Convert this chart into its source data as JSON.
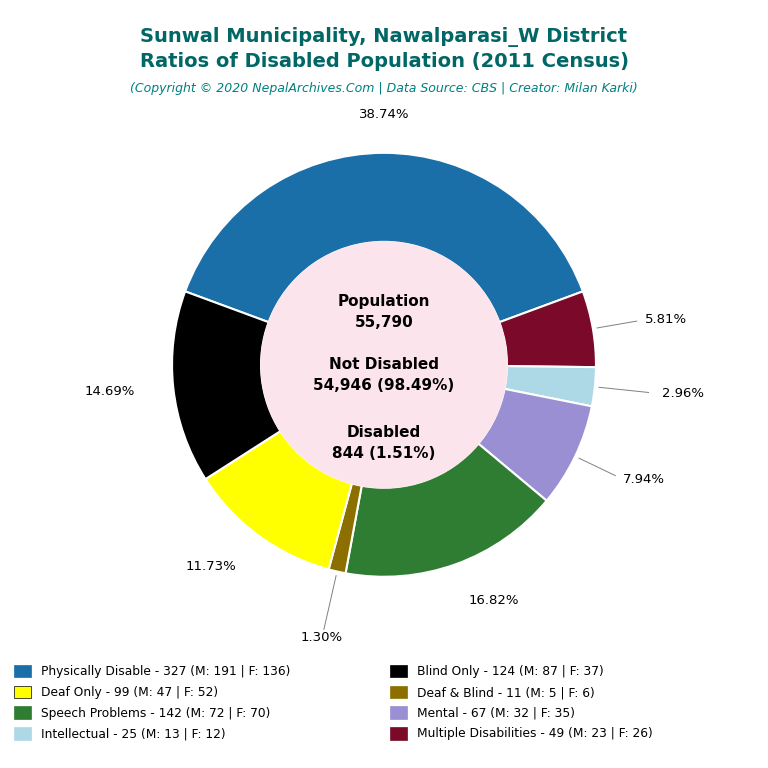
{
  "title_line1": "Sunwal Municipality, Nawalparasi_W District",
  "title_line2": "Ratios of Disabled Population (2011 Census)",
  "subtitle": "(Copyright © 2020 NepalArchives.Com | Data Source: CBS | Creator: Milan Karki)",
  "title_color": "#006666",
  "subtitle_color": "#008080",
  "center_bg": "#fce4ec",
  "slices": [
    {
      "label": "Physically Disable - 327 (M: 191 | F: 136)",
      "value": 327,
      "pct": 38.74,
      "color": "#1a6fa8"
    },
    {
      "label": "Multiple Disabilities - 49 (M: 23 | F: 26)",
      "value": 49,
      "pct": 5.81,
      "color": "#7b0a2a"
    },
    {
      "label": "Intellectual - 25 (M: 13 | F: 12)",
      "value": 25,
      "pct": 2.96,
      "color": "#add8e6"
    },
    {
      "label": "Mental - 67 (M: 32 | F: 35)",
      "value": 67,
      "pct": 7.94,
      "color": "#9b8fd4"
    },
    {
      "label": "Speech Problems - 142 (M: 72 | F: 70)",
      "value": 142,
      "pct": 16.82,
      "color": "#2e7d32"
    },
    {
      "label": "Deaf & Blind - 11 (M: 5 | F: 6)",
      "value": 11,
      "pct": 1.3,
      "color": "#8b7000"
    },
    {
      "label": "Deaf Only - 99 (M: 47 | F: 52)",
      "value": 99,
      "pct": 11.73,
      "color": "#ffff00"
    },
    {
      "label": "Blind Only - 124 (M: 87 | F: 37)",
      "value": 124,
      "pct": 14.69,
      "color": "#000000"
    }
  ],
  "legend_items": [
    {
      "label": "Physically Disable - 327 (M: 191 | F: 136)",
      "color": "#1a6fa8"
    },
    {
      "label": "Deaf Only - 99 (M: 47 | F: 52)",
      "color": "#ffff00"
    },
    {
      "label": "Speech Problems - 142 (M: 72 | F: 70)",
      "color": "#2e7d32"
    },
    {
      "label": "Intellectual - 25 (M: 13 | F: 12)",
      "color": "#add8e6"
    },
    {
      "label": "Blind Only - 124 (M: 87 | F: 37)",
      "color": "#000000"
    },
    {
      "label": "Deaf & Blind - 11 (M: 5 | F: 6)",
      "color": "#8b7000"
    },
    {
      "label": "Mental - 67 (M: 32 | F: 35)",
      "color": "#9b8fd4"
    },
    {
      "label": "Multiple Disabilities - 49 (M: 23 | F: 26)",
      "color": "#7b0a2a"
    }
  ]
}
